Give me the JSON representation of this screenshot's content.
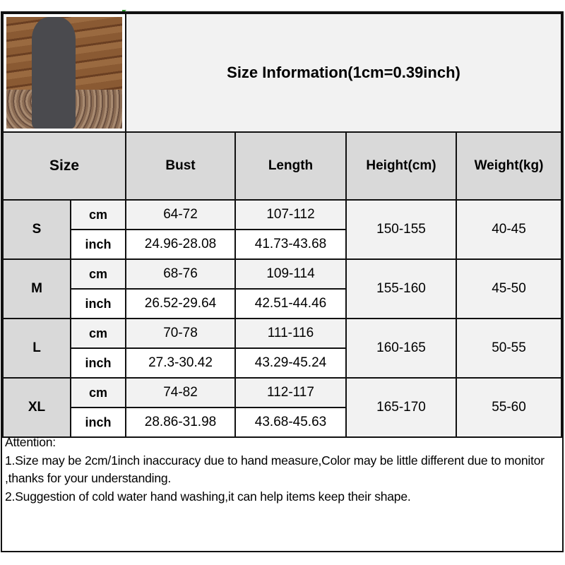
{
  "title": "Size Information(1cm=0.39inch)",
  "headers": {
    "size": "Size",
    "bust": "Bust",
    "length": "Length",
    "height": "Height(cm)",
    "weight": "Weight(kg)"
  },
  "rows": [
    {
      "size": "S",
      "cm_label": "cm",
      "inch_label": "inch",
      "bust_cm": "64-72",
      "length_cm": "107-112",
      "bust_inch": "24.96-28.08",
      "length_inch": "41.73-43.68",
      "height": "150-155",
      "weight": "40-45"
    },
    {
      "size": "M",
      "cm_label": "cm",
      "inch_label": "inch",
      "bust_cm": "68-76",
      "length_cm": "109-114",
      "bust_inch": "26.52-29.64",
      "length_inch": "42.51-44.46",
      "height": "155-160",
      "weight": "45-50"
    },
    {
      "size": "L",
      "cm_label": "cm",
      "inch_label": "inch",
      "bust_cm": "70-78",
      "length_cm": "111-116",
      "bust_inch": "27.3-30.42",
      "length_inch": "43.29-45.24",
      "height": "160-165",
      "weight": "50-55"
    },
    {
      "size": "XL",
      "cm_label": "cm",
      "inch_label": "inch",
      "bust_cm": "74-82",
      "length_cm": "112-117",
      "bust_inch": "28.86-31.98",
      "length_inch": "43.68-45.63",
      "height": "165-170",
      "weight": "55-60"
    }
  ],
  "attention": {
    "heading": "Attention:",
    "line1": "1.Size may be 2cm/1inch inaccuracy due to hand measure,Color may be little different due to monitor ,thanks for your understanding.",
    "line2": "2.Suggestion of cold water hand washing,it can help items keep their shape."
  }
}
